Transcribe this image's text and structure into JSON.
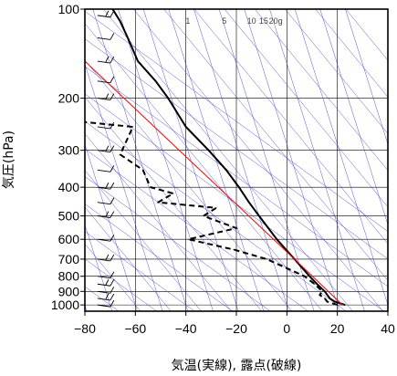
{
  "chart_data": {
    "type": "line",
    "xlabel": "気温(実線), 露点(破線)",
    "ylabel": "気圧(hPa)",
    "xlim": [
      -80,
      40
    ],
    "ylim_hpa": [
      1050,
      100
    ],
    "y_scale": "log",
    "x_ticks": [
      -80,
      -60,
      -40,
      -20,
      0,
      20,
      40
    ],
    "x_tick_labels": [
      "−80",
      "−60",
      "−40",
      "−20",
      "0",
      "20",
      "40"
    ],
    "y_ticks": [
      100,
      200,
      300,
      400,
      500,
      600,
      700,
      800,
      900,
      1000
    ],
    "y_tick_labels": [
      "100",
      "200",
      "300",
      "400",
      "500",
      "600",
      "700",
      "800",
      "900",
      "1000"
    ],
    "mixing_ratio_labels": [
      "1",
      "5",
      "10",
      "15",
      "20g"
    ],
    "colors": {
      "temperature": "#000000",
      "dewpoint": "#000000",
      "reference_line": "#ff0000",
      "adiabats": "#3333cc",
      "grid": "#000000"
    },
    "series": [
      {
        "line_style": "solid",
        "points": [
          {
            "p": 1000,
            "t": 23
          },
          {
            "p": 975,
            "t": 19
          },
          {
            "p": 950,
            "t": 17
          },
          {
            "p": 925,
            "t": 16
          },
          {
            "p": 900,
            "t": 15
          },
          {
            "p": 850,
            "t": 12
          },
          {
            "p": 800,
            "t": 9
          },
          {
            "p": 700,
            "t": 3
          },
          {
            "p": 600,
            "t": -4
          },
          {
            "p": 500,
            "t": -11
          },
          {
            "p": 450,
            "t": -15
          },
          {
            "p": 400,
            "t": -19
          },
          {
            "p": 350,
            "t": -24
          },
          {
            "p": 300,
            "t": -31
          },
          {
            "p": 250,
            "t": -40
          },
          {
            "p": 200,
            "t": -47
          },
          {
            "p": 175,
            "t": -52
          },
          {
            "p": 150,
            "t": -59
          },
          {
            "p": 125,
            "t": -63
          },
          {
            "p": 110,
            "t": -66
          },
          {
            "p": 100,
            "t": -69
          }
        ]
      },
      {
        "line_style": "dashed",
        "points": [
          {
            "p": 1000,
            "t": 20
          },
          {
            "p": 975,
            "t": 16
          },
          {
            "p": 950,
            "t": 15
          },
          {
            "p": 925,
            "t": 13
          },
          {
            "p": 900,
            "t": 14
          },
          {
            "p": 850,
            "t": 11
          },
          {
            "p": 800,
            "t": 7
          },
          {
            "p": 700,
            "t": -8
          },
          {
            "p": 650,
            "t": -21
          },
          {
            "p": 600,
            "t": -39
          },
          {
            "p": 550,
            "t": -20
          },
          {
            "p": 500,
            "t": -33
          },
          {
            "p": 470,
            "t": -28
          },
          {
            "p": 450,
            "t": -51
          },
          {
            "p": 420,
            "t": -45
          },
          {
            "p": 400,
            "t": -54
          },
          {
            "p": 350,
            "t": -57
          },
          {
            "p": 310,
            "t": -66
          },
          {
            "p": 250,
            "t": -61
          },
          {
            "p": 240,
            "t": -82
          }
        ]
      },
      {
        "line_style": "solid",
        "points": [
          {
            "p": 1000,
            "t": 22
          },
          {
            "p": 700,
            "t": 3
          },
          {
            "p": 150,
            "t": -80
          }
        ]
      }
    ],
    "wind_barbs_hpa": [
      105,
      125,
      150,
      175,
      200,
      250,
      300,
      350,
      400,
      450,
      500,
      600,
      700,
      800,
      850,
      900,
      950,
      1000
    ]
  }
}
